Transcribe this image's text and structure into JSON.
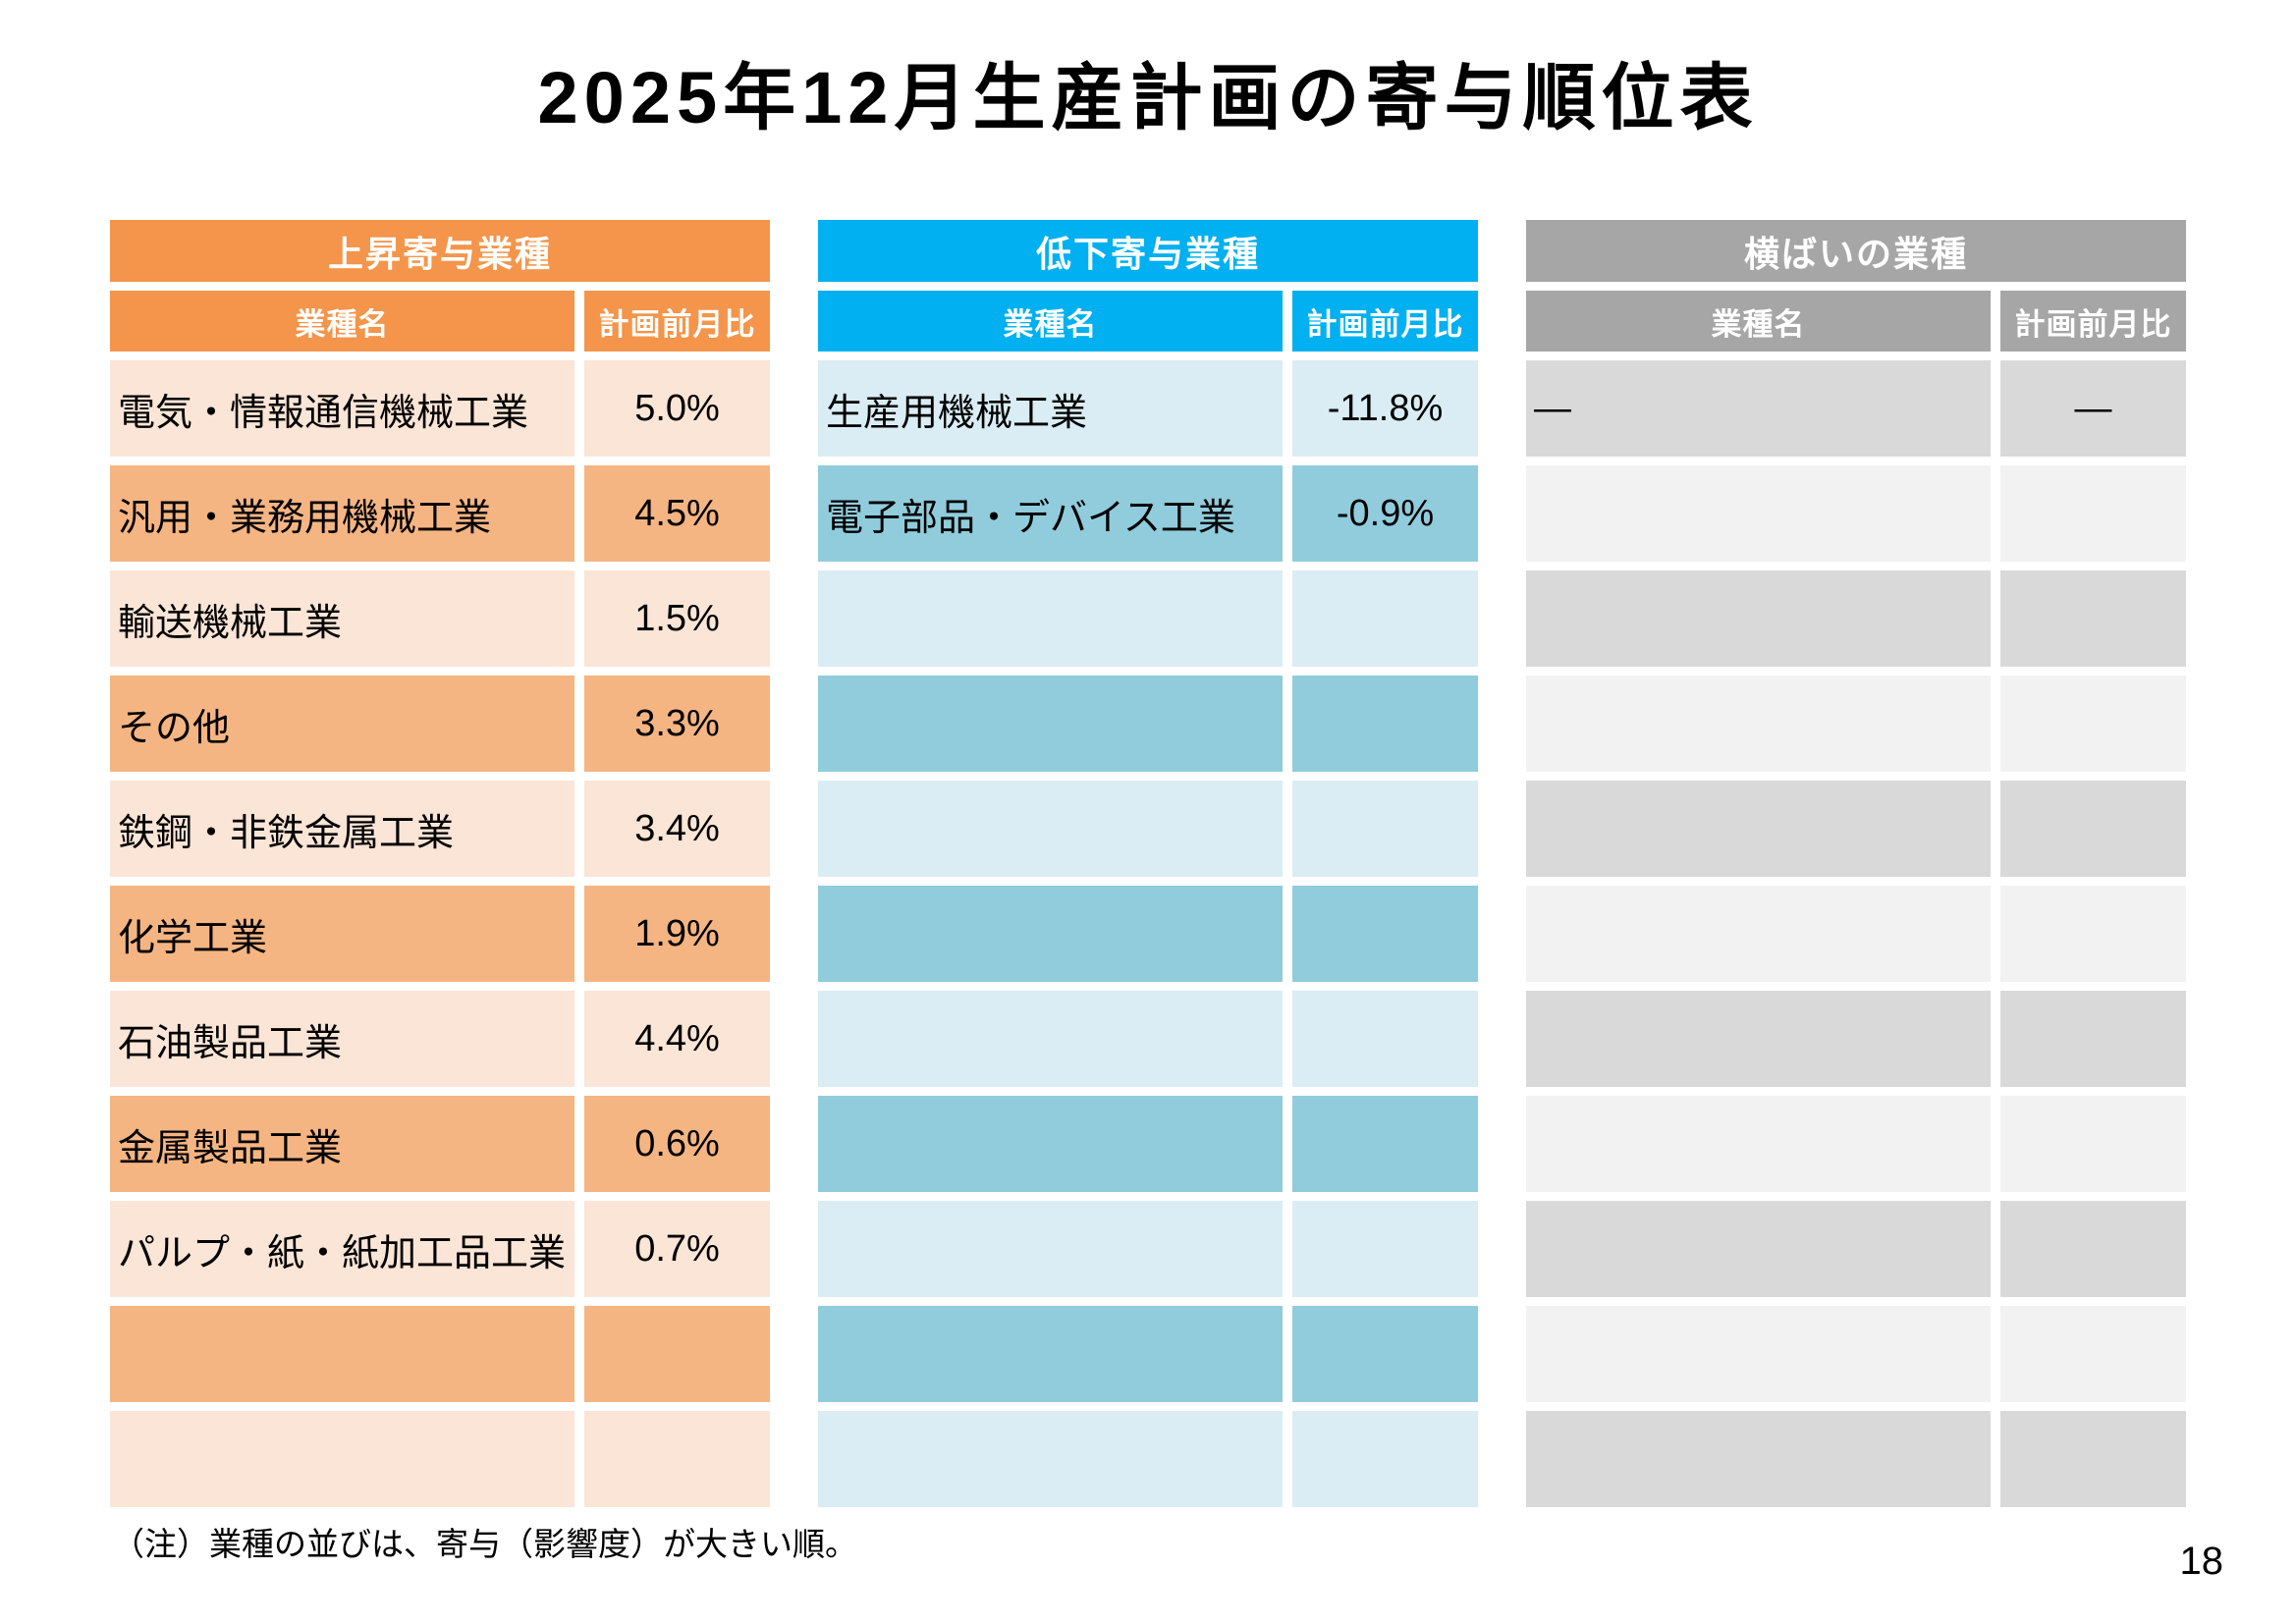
{
  "page": {
    "title": "2025年12月生産計画の寄与順位表",
    "footnote": "（注）業種の並びは、寄与（影響度）が大きい順。",
    "page_number": "18"
  },
  "columns": {
    "name": "業種名",
    "ratio": "計画前月比"
  },
  "row_count": 11,
  "tables": [
    {
      "id": "rising",
      "title": "上昇寄与業種",
      "colors": {
        "header": "#F4954B",
        "row_odd": "#FBE5D6",
        "row_even": "#F5B583"
      },
      "rows": [
        {
          "name": "電気・情報通信機械工業",
          "value": "5.0%"
        },
        {
          "name": "汎用・業務用機械工業",
          "value": "4.5%"
        },
        {
          "name": "輸送機械工業",
          "value": "1.5%"
        },
        {
          "name": "その他",
          "value": "3.3%"
        },
        {
          "name": "鉄鋼・非鉄金属工業",
          "value": "3.4%"
        },
        {
          "name": "化学工業",
          "value": "1.9%"
        },
        {
          "name": "石油製品工業",
          "value": "4.4%"
        },
        {
          "name": "金属製品工業",
          "value": "0.6%"
        },
        {
          "name": "パルプ・紙・紙加工品工業",
          "value": "0.7%"
        }
      ]
    },
    {
      "id": "declining",
      "title": "低下寄与業種",
      "colors": {
        "header": "#00B0F0",
        "row_odd": "#DAEDF4",
        "row_even": "#90CCDC"
      },
      "rows": [
        {
          "name": "生産用機械工業",
          "value": "-11.8%"
        },
        {
          "name": "電子部品・デバイス工業",
          "value": "-0.9%"
        }
      ]
    },
    {
      "id": "flat",
      "title": "横ばいの業種",
      "colors": {
        "header": "#A6A6A6",
        "row_odd": "#D9D9D9",
        "row_even": "#F2F2F2"
      },
      "rows": [
        {
          "name": "―",
          "value": "―"
        }
      ]
    }
  ]
}
